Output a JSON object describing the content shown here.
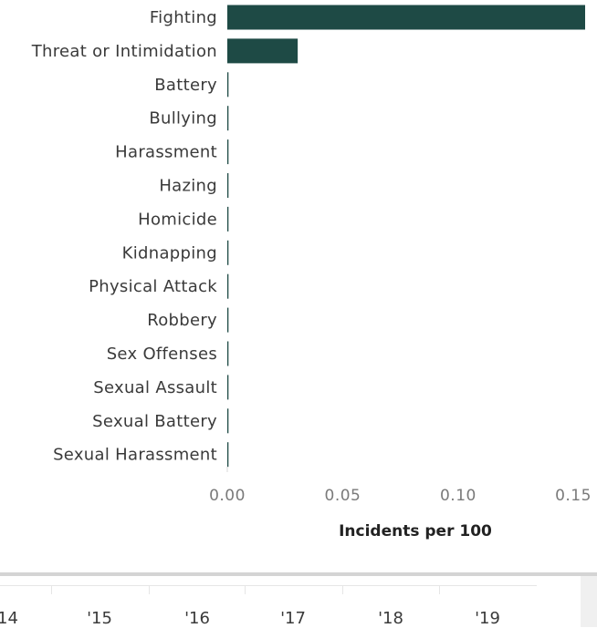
{
  "chart_data": {
    "type": "bar",
    "orientation": "horizontal",
    "categories": [
      "Fighting",
      "Threat or Intimidation",
      "Battery",
      "Bullying",
      "Harassment",
      "Hazing",
      "Homicide",
      "Kidnapping",
      "Physical Attack",
      "Robbery",
      "Sex Offenses",
      "Sexual Assault",
      "Sexual Battery",
      "Sexual Harassment"
    ],
    "values": [
      0.155,
      0.0305,
      0,
      0,
      0,
      0,
      0,
      0,
      0,
      0,
      0,
      0,
      0,
      0
    ],
    "xlabel": "Incidents per 100",
    "xlim": [
      0,
      0.155
    ],
    "xticks": [
      "0.00",
      "0.05",
      "0.10",
      "0.15"
    ],
    "bar_color": "#1e4a45"
  },
  "timeline": {
    "years": [
      "'14",
      "'15",
      "'16",
      "'17",
      "'18",
      "'19"
    ]
  }
}
